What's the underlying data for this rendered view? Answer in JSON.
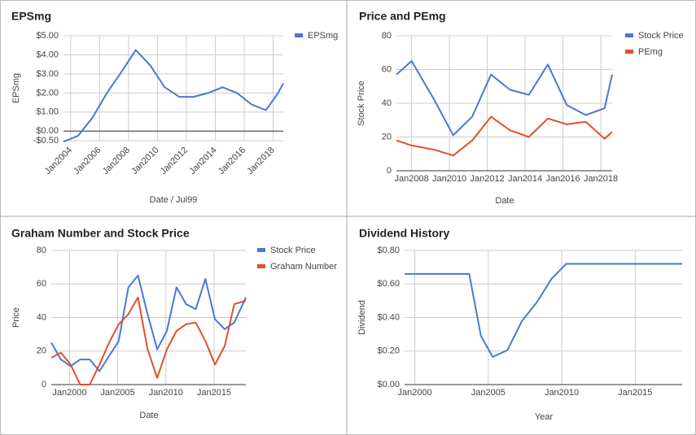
{
  "chart_data": [
    {
      "type": "line",
      "title": "EPSmg",
      "x_label": "Date / Jul99",
      "y_label": "EPSmg",
      "x": [
        2003.5,
        2004.5,
        2005.5,
        2006.5,
        2007.5,
        2008.5,
        2009.5,
        2010.5,
        2011.5,
        2012.5,
        2013.5,
        2014.5,
        2015.5,
        2016.5,
        2017.5,
        2018.3,
        2018.7
      ],
      "series": [
        {
          "name": "EPSmg",
          "color": "#4a78d6",
          "values": [
            -0.55,
            -0.25,
            0.7,
            2.0,
            3.1,
            4.25,
            3.45,
            2.3,
            1.8,
            1.8,
            2.0,
            2.3,
            2.0,
            1.4,
            1.1,
            1.95,
            2.5
          ]
        }
      ],
      "xlim": [
        2003.5,
        2018.7
      ],
      "xticks": [
        {
          "value": 2004,
          "label": "Jan2004"
        },
        {
          "value": 2006,
          "label": "Jan2006"
        },
        {
          "value": 2008,
          "label": "Jan2008"
        },
        {
          "value": 2010,
          "label": "Jan2010"
        },
        {
          "value": 2012,
          "label": "Jan2012"
        },
        {
          "value": 2014,
          "label": "Jan2014"
        },
        {
          "value": 2016,
          "label": "Jan2016"
        },
        {
          "value": 2018,
          "label": "Jan2018"
        }
      ],
      "ylim": [
        -0.5,
        5
      ],
      "yticks": [
        {
          "value": -0.5,
          "label": "-$0.50"
        },
        {
          "value": 0,
          "label": "$0.00"
        },
        {
          "value": 1,
          "label": "$1.00"
        },
        {
          "value": 2,
          "label": "$2.00"
        },
        {
          "value": 3,
          "label": "$3.00"
        },
        {
          "value": 4,
          "label": "$4.00"
        },
        {
          "value": 5,
          "label": "$5.00"
        }
      ],
      "grid": true,
      "legend": "right"
    },
    {
      "type": "line",
      "title": "Price and PEmg",
      "x_label": "Date",
      "y_label": "Stock Price",
      "x": [
        2007.2,
        2008.0,
        2009.2,
        2010.2,
        2011.2,
        2012.2,
        2013.2,
        2014.2,
        2015.2,
        2016.2,
        2017.2,
        2018.2,
        2018.6
      ],
      "series": [
        {
          "name": "Stock Price",
          "color": "#4a78d6",
          "values": [
            57,
            65,
            42,
            21,
            32,
            57,
            48,
            45,
            63,
            39,
            33,
            37,
            57
          ]
        },
        {
          "name": "PEmg",
          "color": "#e0502b",
          "values": [
            18,
            15,
            12.5,
            9,
            18,
            32,
            24,
            20,
            31,
            27.5,
            29,
            19,
            23
          ]
        }
      ],
      "xlim": [
        2007.2,
        2018.6
      ],
      "xticks": [
        {
          "value": 2008,
          "label": "Jan2008"
        },
        {
          "value": 2010,
          "label": "Jan2010"
        },
        {
          "value": 2012,
          "label": "Jan2012"
        },
        {
          "value": 2014,
          "label": "Jan2014"
        },
        {
          "value": 2016,
          "label": "Jan2016"
        },
        {
          "value": 2018,
          "label": "Jan2018"
        }
      ],
      "ylim": [
        0,
        80
      ],
      "yticks": [
        0,
        20,
        40,
        60,
        80
      ],
      "grid": true,
      "legend": "right"
    },
    {
      "type": "line",
      "title": "Graham Number and Stock Price",
      "x_label": "Date",
      "y_label": "Price",
      "x": [
        1998.1,
        1999.1,
        2000.1,
        2001.1,
        2002.1,
        2003.1,
        2004.1,
        2005.1,
        2006.1,
        2007.1,
        2008.1,
        2009.1,
        2010.1,
        2011.1,
        2012.1,
        2013.1,
        2014.1,
        2015.1,
        2016.1,
        2017.1,
        2018.3
      ],
      "series": [
        {
          "name": "Stock Price",
          "color": "#4a78d6",
          "values": [
            25,
            15,
            11,
            15,
            15,
            8,
            17,
            26,
            58,
            65,
            42,
            21,
            32,
            58,
            48,
            45,
            63,
            39,
            33,
            37,
            52
          ]
        },
        {
          "name": "Graham Number",
          "color": "#e0502b",
          "values": [
            16,
            19,
            12,
            0,
            0,
            12,
            25,
            36,
            42,
            52,
            21,
            4,
            21,
            32,
            36,
            37,
            26,
            12,
            23,
            48,
            50
          ]
        }
      ],
      "xlim": [
        1998.1,
        2018.3
      ],
      "xticks": [
        {
          "value": 2000,
          "label": "Jan2000"
        },
        {
          "value": 2005,
          "label": "Jan2005"
        },
        {
          "value": 2010,
          "label": "Jan2010"
        },
        {
          "value": 2015,
          "label": "Jan2015"
        }
      ],
      "ylim": [
        0,
        80
      ],
      "yticks": [
        0,
        20,
        40,
        60,
        80
      ],
      "grid": true,
      "legend": "right"
    },
    {
      "type": "line",
      "title": "Dividend History",
      "x_label": "Year",
      "y_label": "Dividend",
      "x": [
        1999.3,
        2003.7,
        2004.5,
        2005.3,
        2006.3,
        2007.3,
        2008.3,
        2009.3,
        2010.3,
        2018.2
      ],
      "series": [
        {
          "color": "#4a78d6",
          "values": [
            0.66,
            0.66,
            0.29,
            0.165,
            0.205,
            0.38,
            0.49,
            0.63,
            0.72,
            0.72
          ]
        }
      ],
      "xlim": [
        1999.3,
        2018.2
      ],
      "xticks": [
        {
          "value": 2000,
          "label": "Jan2000"
        },
        {
          "value": 2005,
          "label": "Jan2005"
        },
        {
          "value": 2010,
          "label": "Jan2010"
        },
        {
          "value": 2015,
          "label": "Jan2015"
        }
      ],
      "ylim": [
        0,
        0.8
      ],
      "yticks": [
        {
          "value": 0,
          "label": "$0.00"
        },
        {
          "value": 0.2,
          "label": "$0.20"
        },
        {
          "value": 0.4,
          "label": "$0.40"
        },
        {
          "value": 0.6,
          "label": "$0.60"
        },
        {
          "value": 0.8,
          "label": "$0.80"
        }
      ],
      "grid": true
    }
  ]
}
